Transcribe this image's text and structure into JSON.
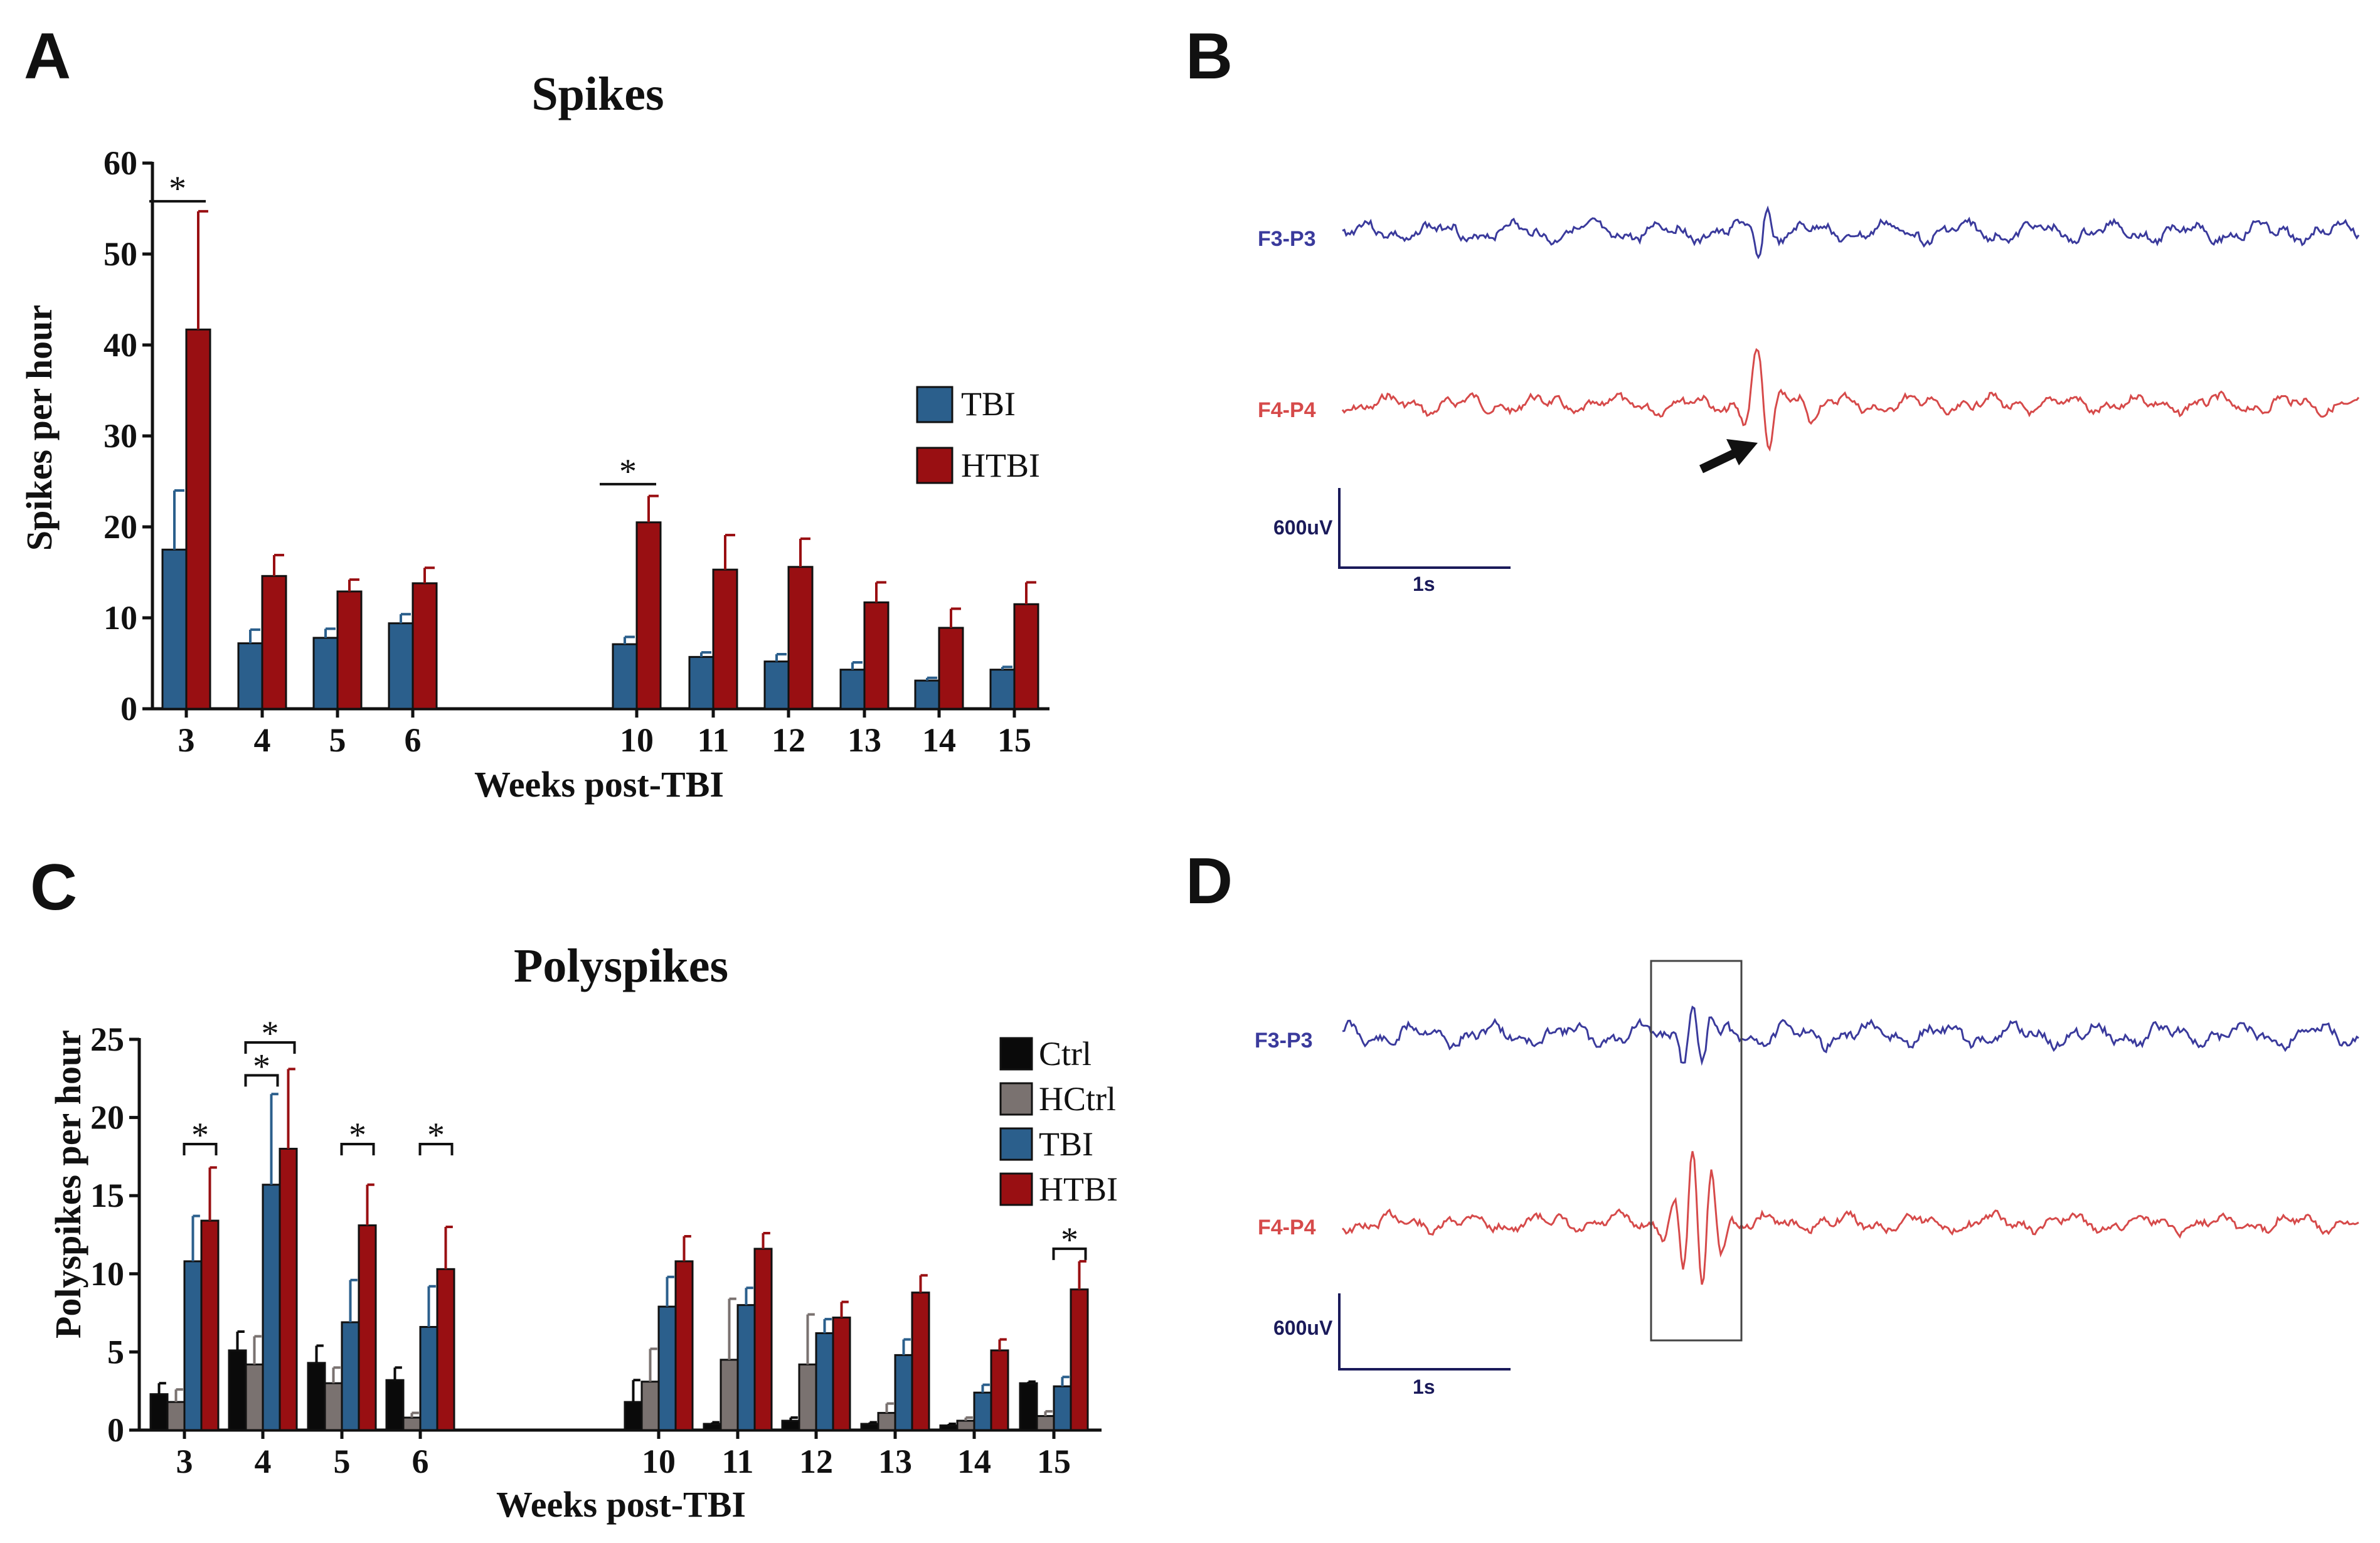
{
  "panel_letters": {
    "a": "A",
    "b": "B",
    "c": "C",
    "d": "D"
  },
  "colors": {
    "Ctrl": "#0a0a0a",
    "HCtrl": "#7a7270",
    "TBI": "#2b5f8c",
    "HTBI": "#990f12",
    "eeg_left": "#3a3a9c",
    "eeg_right": "#d64a4a",
    "scale": "#1a1a5a"
  },
  "chart_data": [
    {
      "id": "A",
      "type": "bar",
      "title": "Spikes",
      "xlabel": "Weeks post-TBI",
      "ylabel": "Spikes per hour",
      "ylim": [
        0,
        60
      ],
      "yticks": [
        0,
        10,
        20,
        30,
        40,
        50,
        60
      ],
      "categories": [
        "3",
        "4",
        "5",
        "6",
        "10",
        "11",
        "12",
        "13",
        "14",
        "15"
      ],
      "legend": [
        "TBI",
        "HTBI"
      ],
      "legend_position": "right",
      "series": [
        {
          "name": "TBI",
          "values": [
            17.5,
            7.2,
            7.8,
            9.4,
            7.1,
            5.7,
            5.2,
            4.3,
            3.1,
            4.3
          ],
          "errors": [
            6.5,
            1.5,
            1.0,
            1.0,
            0.8,
            0.5,
            0.8,
            0.8,
            0.3,
            0.3
          ]
        },
        {
          "name": "HTBI",
          "values": [
            41.7,
            14.6,
            12.9,
            13.8,
            20.5,
            15.3,
            15.6,
            11.7,
            8.9,
            11.5
          ],
          "errors": [
            13.0,
            2.3,
            1.3,
            1.7,
            2.9,
            3.8,
            3.1,
            2.2,
            2.1,
            2.4
          ]
        }
      ],
      "significance": [
        {
          "category": "3",
          "label": "*"
        },
        {
          "category": "10",
          "label": "*"
        }
      ]
    },
    {
      "id": "C",
      "type": "bar",
      "title": "Polyspikes",
      "xlabel": "Weeks post-TBI",
      "ylabel": "Polyspikes per hour",
      "ylim": [
        0,
        25
      ],
      "yticks": [
        0,
        5,
        10,
        15,
        20,
        25
      ],
      "categories": [
        "3",
        "4",
        "5",
        "6",
        "10",
        "11",
        "12",
        "13",
        "14",
        "15"
      ],
      "legend": [
        "Ctrl",
        "HCtrl",
        "TBI",
        "HTBI"
      ],
      "legend_position": "top-right",
      "series": [
        {
          "name": "Ctrl",
          "values": [
            2.3,
            5.1,
            4.3,
            3.2,
            1.8,
            0.4,
            0.6,
            0.4,
            0.3,
            3.0
          ],
          "errors": [
            0.7,
            1.2,
            1.1,
            0.8,
            1.4,
            0.1,
            0.2,
            0.1,
            0.1,
            0.1
          ]
        },
        {
          "name": "HCtrl",
          "values": [
            1.8,
            4.2,
            3.0,
            0.8,
            3.1,
            4.5,
            4.2,
            1.1,
            0.6,
            0.9
          ],
          "errors": [
            0.8,
            1.8,
            1.0,
            0.3,
            2.1,
            3.9,
            3.2,
            0.6,
            0.2,
            0.3
          ]
        },
        {
          "name": "TBI",
          "values": [
            10.8,
            15.7,
            6.9,
            6.6,
            7.9,
            8.0,
            6.2,
            4.8,
            2.4,
            2.8
          ],
          "errors": [
            2.9,
            5.8,
            2.7,
            2.6,
            1.9,
            1.1,
            0.9,
            1.0,
            0.5,
            0.6
          ]
        },
        {
          "name": "HTBI",
          "values": [
            13.4,
            18.0,
            13.1,
            10.3,
            10.8,
            11.6,
            7.2,
            8.8,
            5.1,
            9.0
          ],
          "errors": [
            3.4,
            5.1,
            2.6,
            2.7,
            1.6,
            1.0,
            1.0,
            1.1,
            0.7,
            1.8
          ]
        }
      ],
      "significance": [
        {
          "category": "3",
          "pair": [
            "TBI",
            "HTBI"
          ],
          "label": "*"
        },
        {
          "category": "4",
          "pair": [
            "HCtrl",
            "TBI"
          ],
          "label": "*"
        },
        {
          "category": "4",
          "pair": [
            "HCtrl",
            "HTBI"
          ],
          "label": "*"
        },
        {
          "category": "5",
          "pair": [
            "TBI",
            "HTBI"
          ],
          "label": "*"
        },
        {
          "category": "6",
          "pair": [
            "TBI",
            "HTBI"
          ],
          "label": "*"
        },
        {
          "category": "15",
          "pair": [
            "TBI",
            "HTBI"
          ],
          "label": "*"
        }
      ]
    }
  ],
  "eeg": {
    "B": {
      "channel1": "F3-P3",
      "channel2": "F4-P4",
      "scale_v": "600uV",
      "scale_t": "1s",
      "annotation": "arrow at spike"
    },
    "D": {
      "channel1": "F3-P3",
      "channel2": "F4-P4",
      "scale_v": "600uV",
      "scale_t": "1s",
      "annotation": "box around polyspike"
    }
  }
}
